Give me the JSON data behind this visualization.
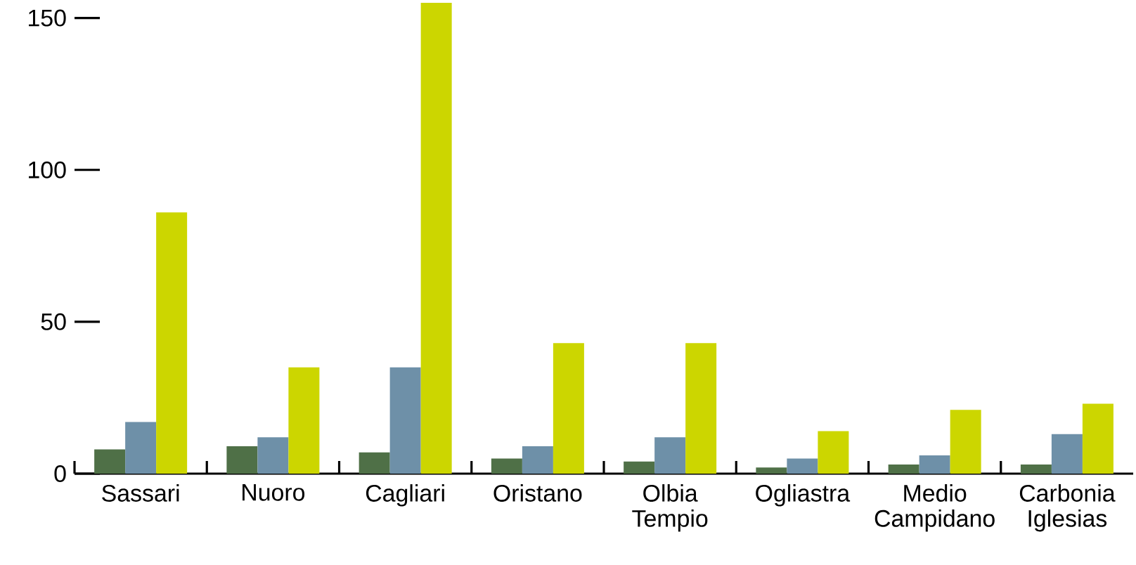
{
  "chart_data": {
    "type": "bar",
    "categories": [
      "Sassari",
      "Nuoro",
      "Cagliari",
      "Oristano",
      "Olbia Tempio",
      "Ogliastra",
      "Medio Campidano",
      "Carbonia Iglesias"
    ],
    "series": [
      {
        "color": "#4f7047",
        "values": [
          8,
          9,
          7,
          5,
          4,
          2,
          3,
          3
        ]
      },
      {
        "color": "#6e90a8",
        "values": [
          17,
          12,
          35,
          9,
          12,
          5,
          6,
          13
        ]
      },
      {
        "color": "#ccd600",
        "values": [
          86,
          35,
          155,
          43,
          43,
          14,
          21,
          23
        ]
      }
    ],
    "ylim": [
      0,
      155
    ],
    "yticks": [
      0,
      50,
      100,
      150
    ]
  }
}
